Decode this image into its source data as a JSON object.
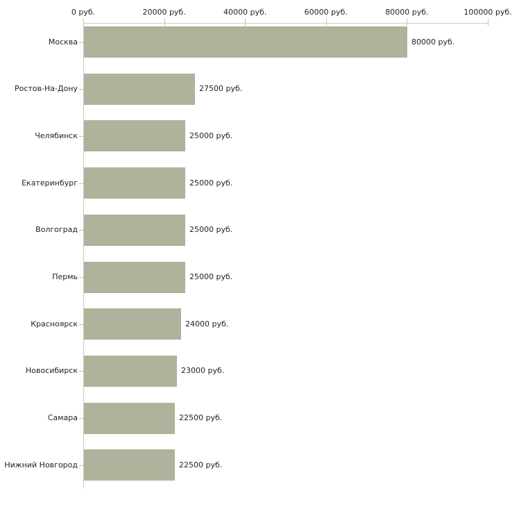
{
  "chart_data": {
    "type": "bar",
    "orientation": "horizontal",
    "title": "",
    "categories": [
      "Москва",
      "Ростов-На-Дону",
      "Челябинск",
      "Екатеринбург",
      "Волгоград",
      "Пермь",
      "Красноярск",
      "Новосибирск",
      "Самара",
      "Нижний Новгород"
    ],
    "values": [
      80000,
      27500,
      25000,
      25000,
      25000,
      25000,
      24000,
      23000,
      22500,
      22500
    ],
    "value_labels": [
      "80000 руб.",
      "27500 руб.",
      "25000 руб.",
      "25000 руб.",
      "25000 руб.",
      "25000 руб.",
      "24000 руб.",
      "23000 руб.",
      "22500 руб.",
      "22500 руб."
    ],
    "x_axis": {
      "position": "top",
      "lim": [
        0,
        100000
      ],
      "ticks": [
        0,
        20000,
        40000,
        60000,
        80000,
        100000
      ],
      "tick_labels": [
        "0 руб.",
        "20000 руб.",
        "40000 руб.",
        "60000 руб.",
        "80000 руб.",
        "100000 руб."
      ]
    },
    "grid": false,
    "colors": {
      "bar": "#ADB49B",
      "axis_line": "#C8C8C4",
      "tick": "#C1C49A",
      "text": "#1F1F1F",
      "background": "#FFFFFF"
    }
  }
}
